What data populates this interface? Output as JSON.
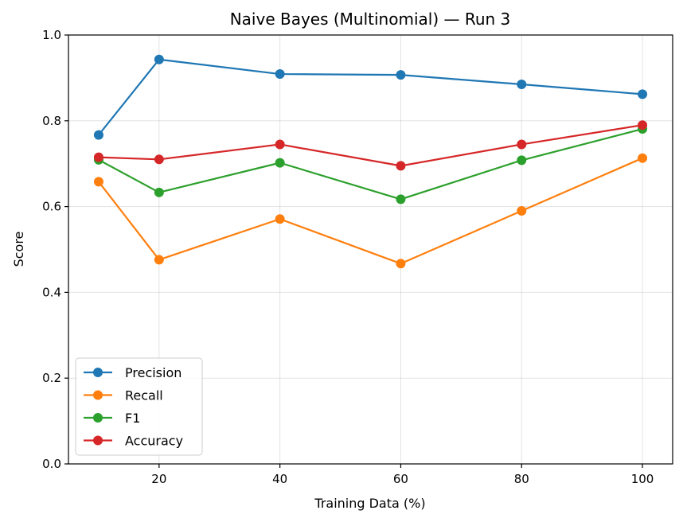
{
  "chart_data": {
    "type": "line",
    "title": "Naive Bayes (Multinomial) — Run 3",
    "xlabel": "Training Data (%)",
    "ylabel": "Score",
    "x": [
      10,
      20,
      40,
      60,
      80,
      100
    ],
    "xlim": [
      5,
      105
    ],
    "ylim": [
      0,
      1
    ],
    "xticks": [
      20,
      40,
      60,
      80,
      100
    ],
    "xtick_labels": [
      "20",
      "40",
      "60",
      "80",
      "100"
    ],
    "yticks": [
      0,
      0.2,
      0.4,
      0.6,
      0.8,
      1.0
    ],
    "ytick_labels": [
      "0.0",
      "0.2",
      "0.4",
      "0.6",
      "0.8",
      "1.0"
    ],
    "grid": true,
    "legend_position": "lower-left",
    "series": [
      {
        "name": "Precision",
        "color": "#1f77b4",
        "values": [
          0.767,
          0.943,
          0.909,
          0.907,
          0.885,
          0.862
        ]
      },
      {
        "name": "Recall",
        "color": "#ff7f0e",
        "values": [
          0.658,
          0.476,
          0.571,
          0.467,
          0.59,
          0.713
        ]
      },
      {
        "name": "F1",
        "color": "#2ca02c",
        "values": [
          0.709,
          0.633,
          0.702,
          0.617,
          0.708,
          0.781
        ]
      },
      {
        "name": "Accuracy",
        "color": "#d62728",
        "values": [
          0.715,
          0.71,
          0.745,
          0.695,
          0.745,
          0.79
        ]
      }
    ]
  }
}
